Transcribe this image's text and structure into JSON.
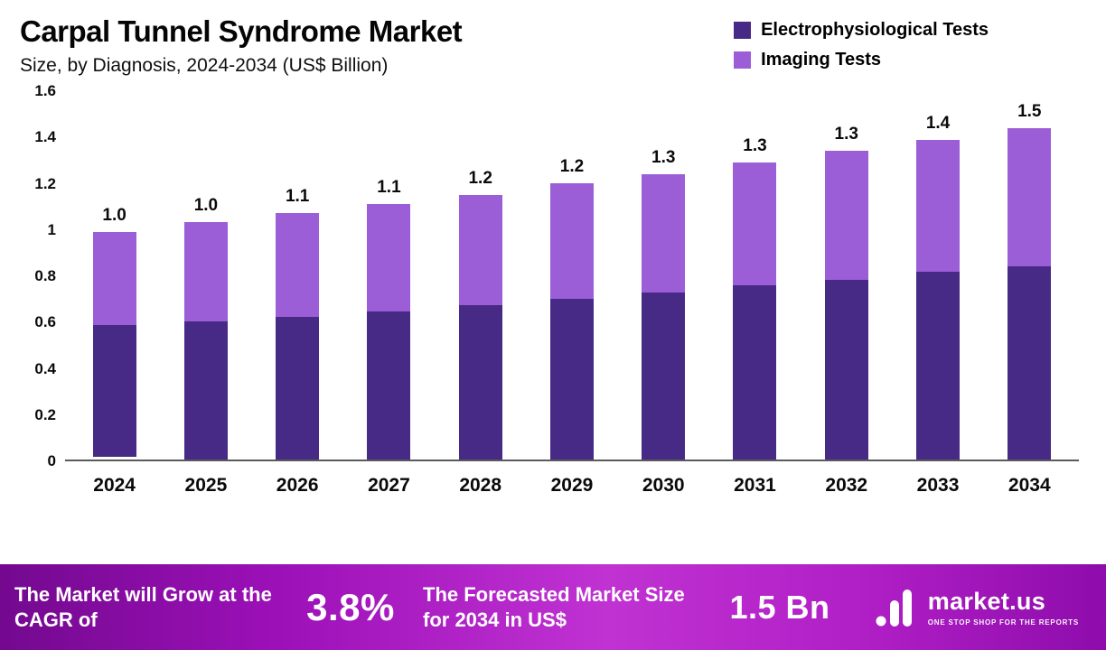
{
  "header": {
    "title": "Carpal Tunnel Syndrome Market",
    "subtitle": "Size, by Diagnosis, 2024-2034 (US$ Billion)"
  },
  "chart_data": {
    "type": "bar",
    "stacked": true,
    "title": "Carpal Tunnel Syndrome Market",
    "subtitle": "Size, by Diagnosis, 2024-2034 (US$ Billion)",
    "unit": "US$ Billion",
    "categories": [
      "2024",
      "2025",
      "2026",
      "2027",
      "2028",
      "2029",
      "2030",
      "2031",
      "2032",
      "2033",
      "2034"
    ],
    "series": [
      {
        "name": "Electrophysiological Tests",
        "color": "#472a85",
        "values": [
          0.58,
          0.6,
          0.62,
          0.645,
          0.67,
          0.7,
          0.725,
          0.755,
          0.78,
          0.815,
          0.84
        ]
      },
      {
        "name": "Imaging Tests",
        "color": "#9c5ed6",
        "values": [
          0.41,
          0.43,
          0.45,
          0.465,
          0.48,
          0.5,
          0.515,
          0.535,
          0.56,
          0.575,
          0.6
        ]
      }
    ],
    "totals_labels": [
      "1.0",
      "1.0",
      "1.1",
      "1.1",
      "1.2",
      "1.2",
      "1.3",
      "1.3",
      "1.3",
      "1.4",
      "1.5"
    ],
    "ylim": [
      0,
      1.6
    ],
    "yticks": [
      "1.6",
      "1.4",
      "1.2",
      "1",
      "0.8",
      "0.6",
      "0.4",
      "0.2",
      "0"
    ],
    "grid": false,
    "legend_position": "top-right"
  },
  "footer": {
    "cagr_text": "The Market will Grow at the CAGR of",
    "cagr_value": "3.8%",
    "forecast_text": "The Forecasted Market Size for 2034 in US$",
    "forecast_value": "1.5 Bn",
    "brand": "market.us",
    "tagline": "ONE STOP SHOP FOR THE REPORTS"
  }
}
